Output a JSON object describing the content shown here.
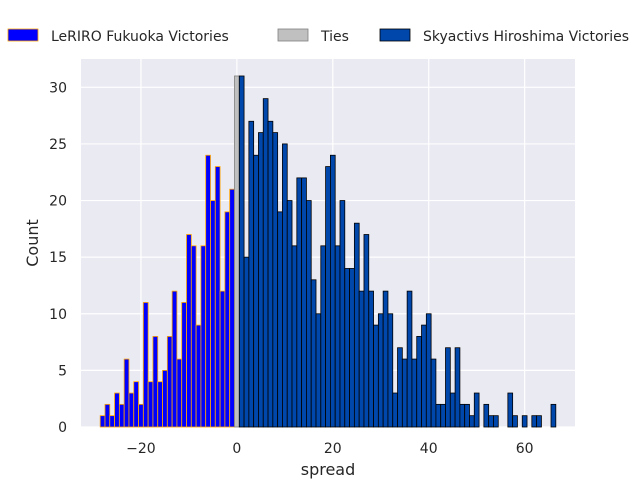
{
  "chart_data": {
    "type": "bar",
    "xlabel": "spread",
    "ylabel": "Count",
    "xlim": [
      -32.5,
      70.5
    ],
    "ylim": [
      0,
      32.5
    ],
    "xticks": [
      -20,
      0,
      20,
      40,
      60
    ],
    "yticks": [
      0,
      5,
      10,
      15,
      20,
      25,
      30
    ],
    "xtick_labels": [
      "−20",
      "0",
      "20",
      "40",
      "60"
    ],
    "ytick_labels": [
      "0",
      "5",
      "10",
      "15",
      "20",
      "25",
      "30"
    ],
    "grid": true,
    "legend_position": "top, above plot, 3 columns",
    "series": [
      {
        "name": "LeRIRO Fukuoka Victories",
        "color": "#0000ff",
        "edge_color": "#ffa500",
        "x": [
          -28,
          -27,
          -26,
          -25,
          -24,
          -23,
          -22,
          -21,
          -20,
          -19,
          -18,
          -17,
          -16,
          -15,
          -14,
          -13,
          -12,
          -11,
          -10,
          -9,
          -8,
          -7,
          -6,
          -5,
          -4,
          -3,
          -2,
          -1
        ],
        "values": [
          1,
          2,
          1,
          3,
          2,
          6,
          3,
          4,
          2,
          11,
          4,
          8,
          4,
          5,
          8,
          12,
          6,
          11,
          17,
          16,
          9,
          16,
          24,
          20,
          23,
          12,
          19,
          21
        ]
      },
      {
        "name": "Ties",
        "color": "#c0c0c0",
        "edge_color": "#808080",
        "x": [
          0
        ],
        "values": [
          31
        ]
      },
      {
        "name": "Skyactivs Hiroshima Victories",
        "color": "#0047ab",
        "edge_color": "#000000",
        "x": [
          1,
          2,
          3,
          4,
          5,
          6,
          7,
          8,
          9,
          10,
          11,
          12,
          13,
          14,
          15,
          16,
          17,
          18,
          19,
          20,
          21,
          22,
          23,
          24,
          25,
          26,
          27,
          28,
          29,
          30,
          31,
          32,
          33,
          34,
          35,
          36,
          37,
          38,
          39,
          40,
          41,
          42,
          43,
          44,
          45,
          46,
          47,
          48,
          49,
          50,
          51,
          52,
          53,
          54,
          55,
          56,
          57,
          58,
          59,
          60,
          61,
          62,
          63,
          64,
          65,
          66
        ],
        "values": [
          31,
          15,
          27,
          24,
          26,
          29,
          27,
          26,
          19,
          25,
          20,
          16,
          22,
          22,
          20,
          13,
          10,
          16,
          23,
          24,
          16,
          20,
          14,
          14,
          18,
          12,
          17,
          12,
          9,
          10,
          12,
          10,
          3,
          7,
          6,
          12,
          6,
          8,
          9,
          10,
          6,
          2,
          2,
          7,
          3,
          7,
          2,
          2,
          1,
          3,
          0,
          2,
          1,
          1,
          0,
          0,
          3,
          1,
          0,
          1,
          0,
          1,
          1,
          0,
          0,
          2
        ]
      }
    ]
  }
}
